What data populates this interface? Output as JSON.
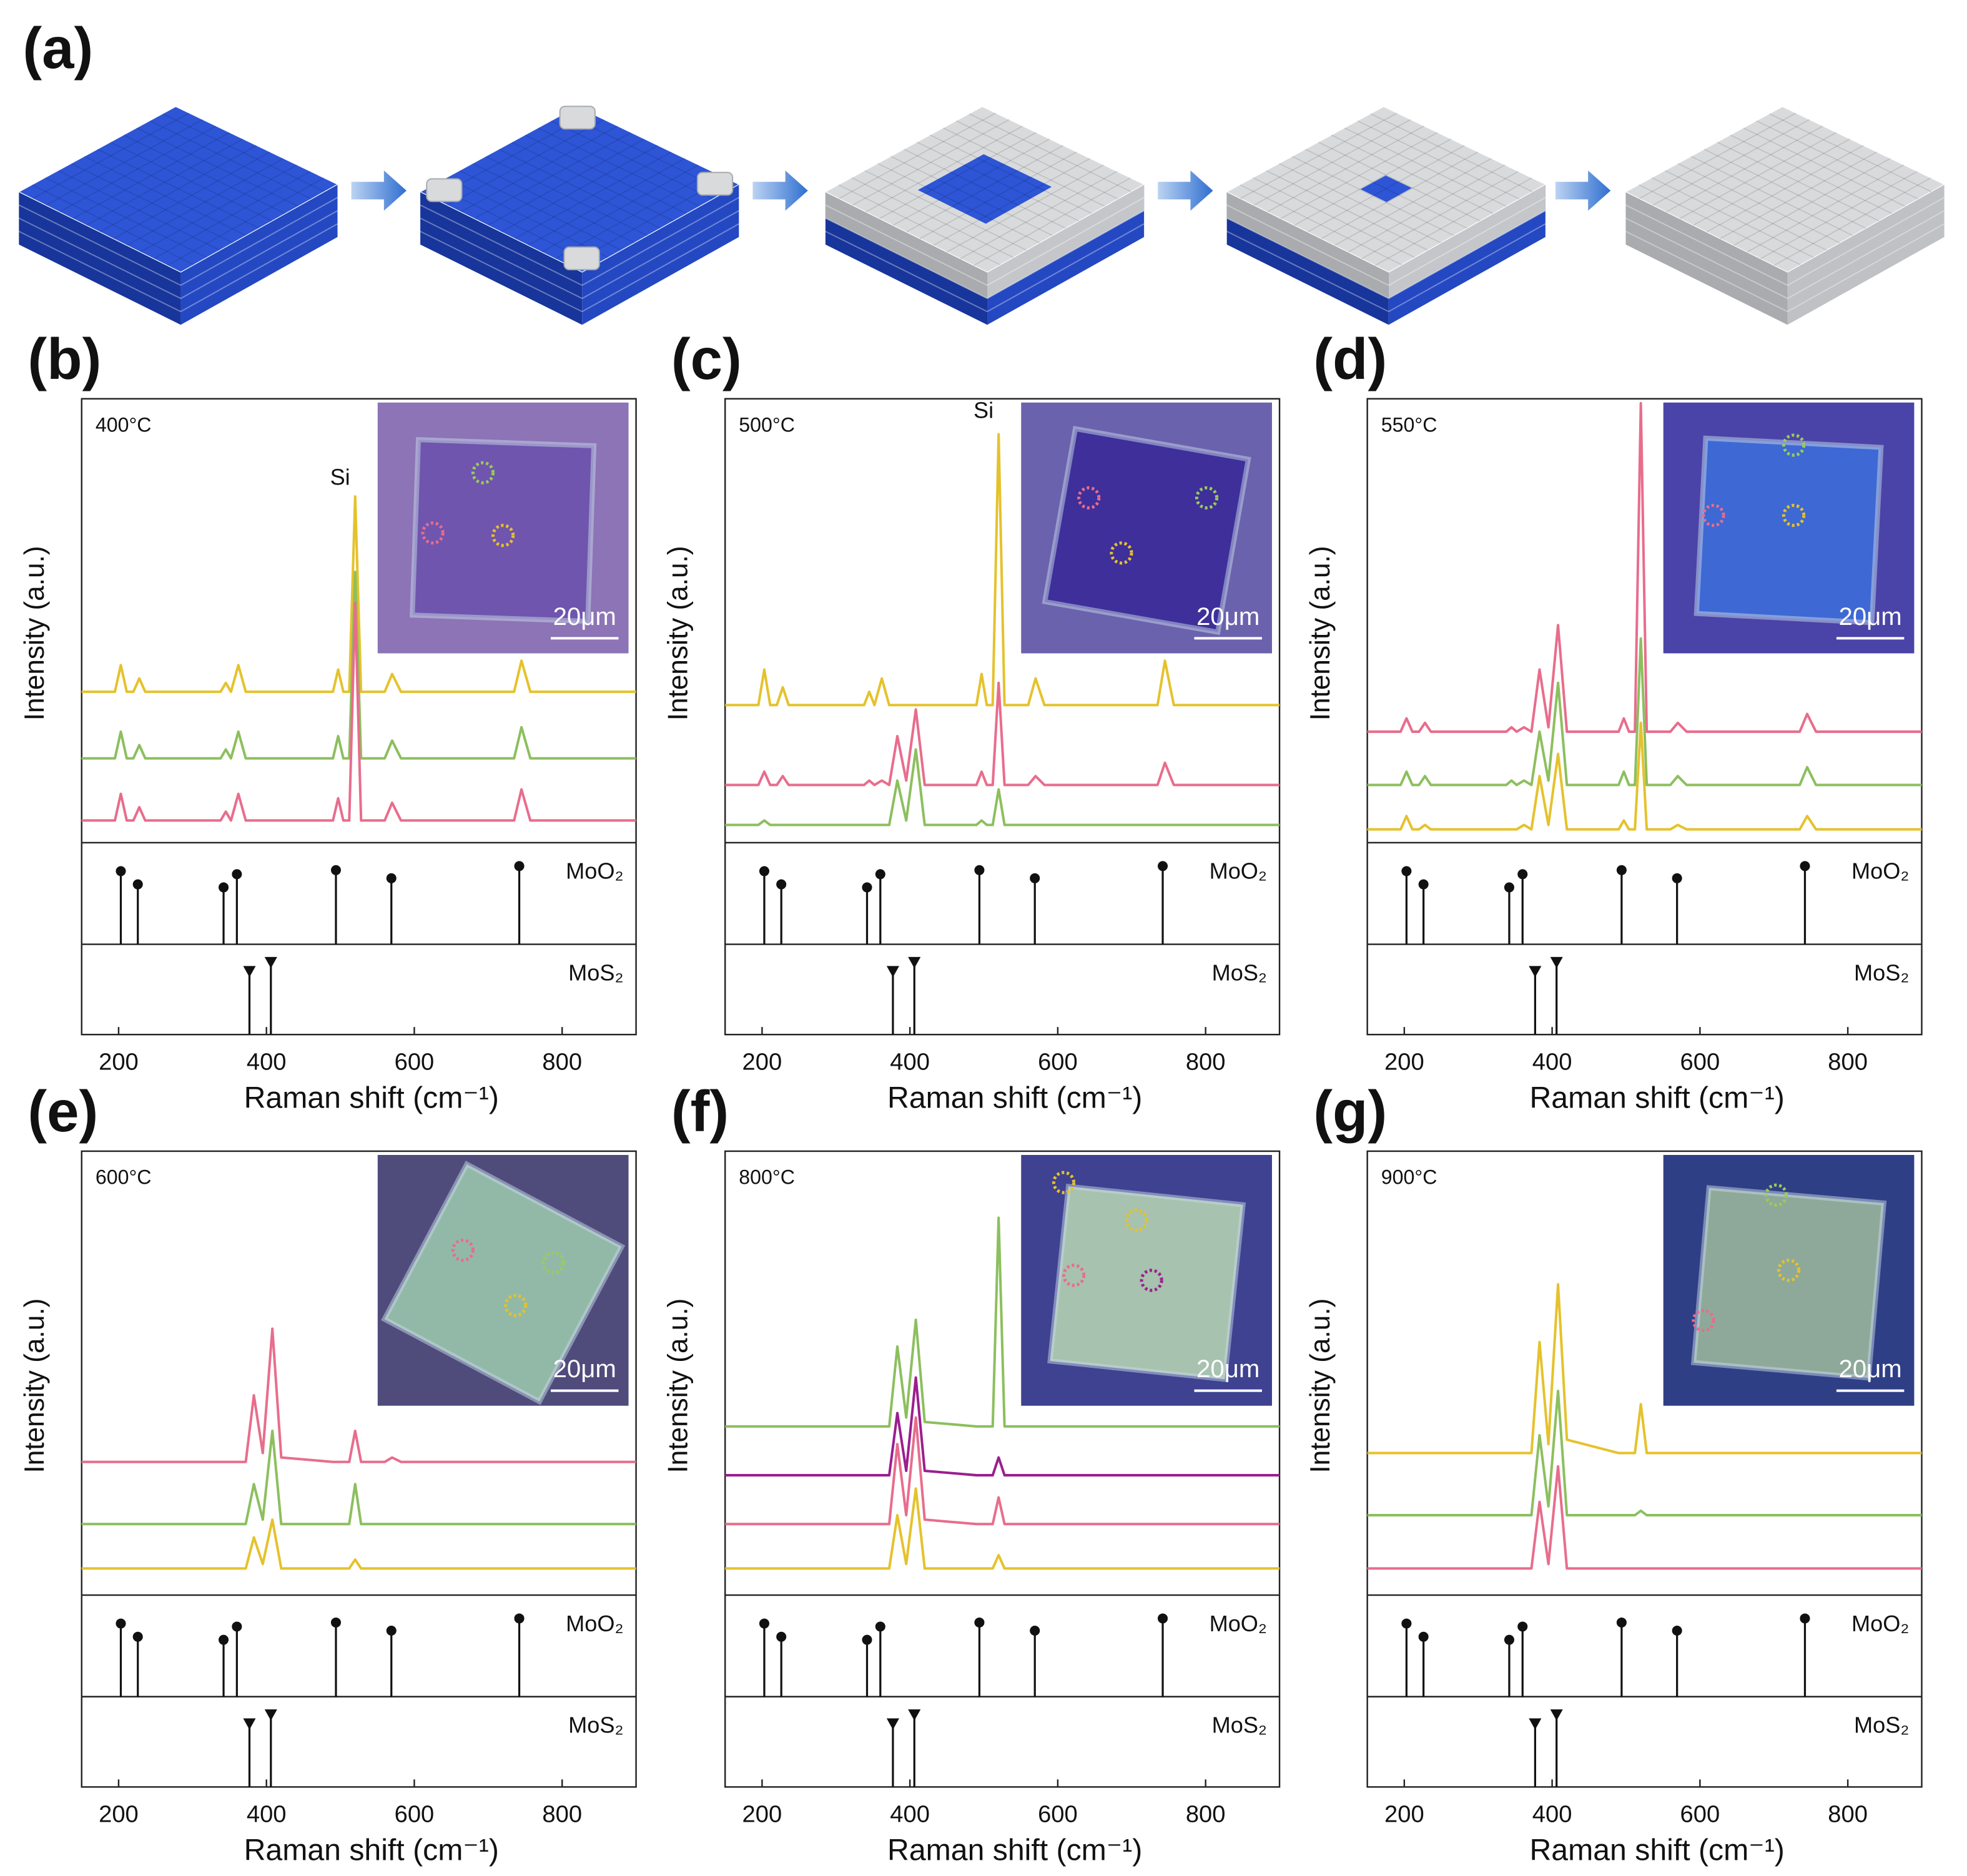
{
  "panel_a": {
    "label": "(a)"
  },
  "chart_data": [
    {
      "type": "line",
      "label": "(b)",
      "annotation": "400°C",
      "xlabel": "Raman shift (cm⁻¹)",
      "ylabel": "Intensity (a.u.)",
      "xlim": [
        150,
        900
      ],
      "xticks": [
        200,
        400,
        600,
        800
      ],
      "ylim": [
        0,
        100
      ],
      "x": [
        150,
        195,
        203,
        211,
        220,
        228,
        236,
        338,
        345,
        352,
        362,
        372,
        383,
        395,
        408,
        420,
        490,
        497,
        504,
        512,
        520,
        528,
        560,
        570,
        582,
        735,
        745,
        757,
        900
      ],
      "series": [
        {
          "color": "#e5c22c",
          "values": [
            34,
            34,
            40,
            34,
            34,
            37,
            34,
            34,
            36,
            34,
            40,
            34,
            34,
            34,
            34,
            34,
            34,
            39,
            34,
            34,
            78,
            34,
            34,
            38,
            34,
            34,
            41,
            34,
            34
          ]
        },
        {
          "color": "#8cbf5e",
          "values": [
            19,
            19,
            25,
            19,
            19,
            22,
            19,
            19,
            21,
            19,
            25,
            19,
            19,
            19,
            19,
            19,
            19,
            24,
            19,
            19,
            61,
            19,
            19,
            23,
            19,
            19,
            26,
            19,
            19
          ]
        },
        {
          "color": "#e86d8c",
          "values": [
            5,
            5,
            11,
            5,
            5,
            8,
            5,
            5,
            7,
            5,
            11,
            5,
            5,
            5,
            5,
            5,
            5,
            10,
            5,
            5,
            54,
            5,
            5,
            9,
            5,
            5,
            12,
            5,
            5
          ]
        }
      ],
      "peak_labels": [
        {
          "text": "Si",
          "x": 520,
          "y": 82
        }
      ],
      "reference_ylim": [
        0,
        100
      ],
      "reference": [
        {
          "name": "MoO₂",
          "marker": "circle",
          "x": [
            203,
            226,
            342,
            360,
            494,
            569,
            742
          ],
          "values": [
            72,
            59,
            56,
            69,
            73,
            65,
            77
          ]
        },
        {
          "name": "MoS₂",
          "marker": "triangle",
          "x": [
            377,
            406
          ],
          "values": [
            69,
            79
          ]
        }
      ],
      "inset": {
        "scale_bar": "20μm"
      }
    },
    {
      "type": "line",
      "label": "(c)",
      "annotation": "500°C",
      "xlabel": "Raman shift (cm⁻¹)",
      "ylabel": "Intensity (a.u.)",
      "xlim": [
        150,
        900
      ],
      "xticks": [
        200,
        400,
        600,
        800
      ],
      "ylim": [
        0,
        100
      ],
      "x": [
        150,
        195,
        203,
        211,
        220,
        228,
        236,
        338,
        345,
        352,
        362,
        372,
        383,
        395,
        408,
        420,
        490,
        497,
        504,
        512,
        520,
        528,
        560,
        570,
        582,
        735,
        745,
        757,
        900
      ],
      "series": [
        {
          "color": "#e5c22c",
          "values": [
            31,
            31,
            39,
            31,
            31,
            35,
            31,
            31,
            34,
            31,
            37,
            31,
            31,
            31,
            31,
            31,
            31,
            38,
            31,
            31,
            92,
            31,
            31,
            37,
            31,
            31,
            41,
            31,
            31
          ]
        },
        {
          "color": "#e86d8c",
          "values": [
            13,
            13,
            16,
            13,
            13,
            15,
            13,
            13,
            14,
            13,
            14,
            13,
            24,
            14,
            30,
            13,
            13,
            16,
            13,
            13,
            36,
            13,
            13,
            15,
            13,
            13,
            18,
            13,
            13
          ]
        },
        {
          "color": "#8cbf5e",
          "values": [
            4,
            4,
            5,
            4,
            4,
            4,
            4,
            4,
            4,
            4,
            4,
            4,
            14,
            5,
            21,
            4,
            4,
            5,
            4,
            4,
            12,
            4,
            4,
            4,
            4,
            4,
            4,
            4,
            4
          ]
        }
      ],
      "peak_labels": [
        {
          "text": "Si",
          "x": 520,
          "y": 97
        }
      ],
      "reference_ylim": [
        0,
        100
      ],
      "reference": [
        {
          "name": "MoO₂",
          "marker": "circle",
          "x": [
            203,
            226,
            342,
            360,
            494,
            569,
            742
          ],
          "values": [
            72,
            59,
            56,
            69,
            73,
            65,
            77
          ]
        },
        {
          "name": "MoS₂",
          "marker": "triangle",
          "x": [
            377,
            406
          ],
          "values": [
            69,
            79
          ]
        }
      ],
      "inset": {
        "scale_bar": "20μm"
      }
    },
    {
      "type": "line",
      "label": "(d)",
      "annotation": "550°C",
      "xlabel": "Raman shift (cm⁻¹)",
      "ylabel": "Intensity (a.u.)",
      "xlim": [
        150,
        900
      ],
      "xticks": [
        200,
        400,
        600,
        800
      ],
      "ylim": [
        0,
        100
      ],
      "x": [
        150,
        195,
        203,
        211,
        220,
        228,
        236,
        338,
        345,
        352,
        362,
        372,
        383,
        395,
        408,
        420,
        490,
        497,
        504,
        512,
        520,
        528,
        560,
        570,
        582,
        735,
        745,
        757,
        900
      ],
      "series": [
        {
          "color": "#e86d8c",
          "values": [
            25,
            25,
            28,
            25,
            25,
            27,
            25,
            25,
            26,
            25,
            26,
            25,
            39,
            26,
            49,
            25,
            25,
            28,
            25,
            25,
            99,
            25,
            25,
            27,
            25,
            25,
            29,
            25,
            25
          ]
        },
        {
          "color": "#8cbf5e",
          "values": [
            13,
            13,
            16,
            13,
            13,
            15,
            13,
            13,
            14,
            13,
            14,
            13,
            25,
            14,
            36,
            13,
            13,
            16,
            13,
            13,
            46,
            13,
            13,
            15,
            13,
            13,
            17,
            13,
            13
          ]
        },
        {
          "color": "#e5c22c",
          "values": [
            3,
            3,
            6,
            3,
            3,
            4,
            3,
            3,
            3,
            3,
            4,
            3,
            15,
            4,
            20,
            3,
            3,
            5,
            3,
            3,
            27,
            3,
            3,
            4,
            3,
            3,
            6,
            3,
            3
          ]
        }
      ],
      "reference_ylim": [
        0,
        100
      ],
      "reference": [
        {
          "name": "MoO₂",
          "marker": "circle",
          "x": [
            203,
            226,
            342,
            360,
            494,
            569,
            742
          ],
          "values": [
            72,
            59,
            56,
            69,
            73,
            65,
            77
          ]
        },
        {
          "name": "MoS₂",
          "marker": "triangle",
          "x": [
            377,
            406
          ],
          "values": [
            69,
            79
          ]
        }
      ],
      "inset": {
        "scale_bar": "20μm"
      }
    },
    {
      "type": "line",
      "label": "(e)",
      "annotation": "600°C",
      "xlabel": "Raman shift (cm⁻¹)",
      "ylabel": "Intensity (a.u.)",
      "xlim": [
        150,
        900
      ],
      "xticks": [
        200,
        400,
        600,
        800
      ],
      "ylim": [
        0,
        100
      ],
      "x": [
        150,
        195,
        203,
        211,
        220,
        228,
        236,
        338,
        345,
        352,
        362,
        372,
        383,
        395,
        408,
        420,
        490,
        497,
        504,
        512,
        520,
        528,
        560,
        570,
        582,
        735,
        745,
        757,
        900
      ],
      "series": [
        {
          "color": "#e86d8c",
          "values": [
            30,
            30,
            30,
            30,
            30,
            30,
            30,
            30,
            30,
            30,
            30,
            30,
            45,
            32,
            60,
            31,
            30,
            30,
            30,
            30,
            37,
            30,
            30,
            31,
            30,
            30,
            30,
            30,
            30
          ]
        },
        {
          "color": "#8cbf5e",
          "values": [
            16,
            16,
            16,
            16,
            16,
            16,
            16,
            16,
            16,
            16,
            16,
            16,
            25,
            17,
            37,
            16,
            16,
            16,
            16,
            16,
            25,
            16,
            16,
            16,
            16,
            16,
            16,
            16,
            16
          ]
        },
        {
          "color": "#e5c22c",
          "values": [
            6,
            6,
            6,
            6,
            6,
            6,
            6,
            6,
            6,
            6,
            6,
            6,
            13,
            7,
            17,
            6,
            6,
            6,
            6,
            6,
            8,
            6,
            6,
            6,
            6,
            6,
            6,
            6,
            6
          ]
        }
      ],
      "reference_ylim": [
        0,
        100
      ],
      "reference": [
        {
          "name": "MoO₂",
          "marker": "circle",
          "x": [
            203,
            226,
            342,
            360,
            494,
            569,
            742
          ],
          "values": [
            72,
            59,
            56,
            69,
            73,
            65,
            77
          ]
        },
        {
          "name": "MoS₂",
          "marker": "triangle",
          "x": [
            377,
            406
          ],
          "values": [
            69,
            79
          ]
        }
      ],
      "inset": {
        "scale_bar": "20μm"
      }
    },
    {
      "type": "line",
      "label": "(f)",
      "annotation": "800°C",
      "xlabel": "Raman shift (cm⁻¹)",
      "ylabel": "Intensity (a.u.)",
      "xlim": [
        150,
        900
      ],
      "xticks": [
        200,
        400,
        600,
        800
      ],
      "ylim": [
        0,
        100
      ],
      "x": [
        150,
        195,
        203,
        211,
        220,
        228,
        236,
        338,
        345,
        352,
        362,
        372,
        383,
        395,
        408,
        420,
        490,
        497,
        504,
        512,
        520,
        528,
        560,
        570,
        582,
        735,
        745,
        757,
        900
      ],
      "series": [
        {
          "color": "#8cbf5e",
          "values": [
            38,
            38,
            38,
            38,
            38,
            38,
            38,
            38,
            38,
            38,
            38,
            38,
            56,
            40,
            62,
            39,
            38,
            38,
            38,
            38,
            85,
            38,
            38,
            38,
            38,
            38,
            38,
            38,
            38
          ]
        },
        {
          "color": "#9b1f8f",
          "values": [
            27,
            27,
            27,
            27,
            27,
            27,
            27,
            27,
            27,
            27,
            27,
            27,
            41,
            28,
            49,
            28,
            27,
            27,
            27,
            27,
            31,
            27,
            27,
            27,
            27,
            27,
            27,
            27,
            27
          ]
        },
        {
          "color": "#e86d8c",
          "values": [
            16,
            16,
            16,
            16,
            16,
            16,
            16,
            16,
            16,
            16,
            16,
            16,
            34,
            18,
            40,
            17,
            16,
            16,
            16,
            16,
            22,
            16,
            16,
            16,
            16,
            16,
            16,
            16,
            16
          ]
        },
        {
          "color": "#e5c22c",
          "values": [
            6,
            6,
            6,
            6,
            6,
            6,
            6,
            6,
            6,
            6,
            6,
            6,
            18,
            7,
            24,
            6,
            6,
            6,
            6,
            6,
            9,
            6,
            6,
            6,
            6,
            6,
            6,
            6,
            6
          ]
        }
      ],
      "reference_ylim": [
        0,
        100
      ],
      "reference": [
        {
          "name": "MoO₂",
          "marker": "circle",
          "x": [
            203,
            226,
            342,
            360,
            494,
            569,
            742
          ],
          "values": [
            72,
            59,
            56,
            69,
            73,
            65,
            77
          ]
        },
        {
          "name": "MoS₂",
          "marker": "triangle",
          "x": [
            377,
            406
          ],
          "values": [
            69,
            79
          ]
        }
      ],
      "inset": {
        "scale_bar": "20μm"
      }
    },
    {
      "type": "line",
      "label": "(g)",
      "annotation": "900°C",
      "xlabel": "Raman shift (cm⁻¹)",
      "ylabel": "Intensity (a.u.)",
      "xlim": [
        150,
        900
      ],
      "xticks": [
        200,
        400,
        600,
        800
      ],
      "ylim": [
        0,
        100
      ],
      "x": [
        150,
        195,
        203,
        211,
        220,
        228,
        236,
        338,
        345,
        352,
        362,
        372,
        383,
        395,
        408,
        420,
        490,
        497,
        504,
        512,
        520,
        528,
        560,
        570,
        582,
        735,
        745,
        757,
        900
      ],
      "series": [
        {
          "color": "#e5c22c",
          "values": [
            32,
            32,
            32,
            32,
            32,
            32,
            32,
            32,
            32,
            32,
            32,
            32,
            57,
            34,
            70,
            35,
            32,
            32,
            32,
            32,
            43,
            32,
            32,
            32,
            32,
            32,
            32,
            32,
            32
          ]
        },
        {
          "color": "#8cbf5e",
          "values": [
            18,
            18,
            18,
            18,
            18,
            18,
            18,
            18,
            18,
            18,
            18,
            18,
            36,
            20,
            46,
            18,
            18,
            18,
            18,
            18,
            19,
            18,
            18,
            18,
            18,
            18,
            18,
            18,
            18
          ]
        },
        {
          "color": "#e86d8c",
          "values": [
            6,
            6,
            6,
            6,
            6,
            6,
            6,
            6,
            6,
            6,
            6,
            6,
            21,
            7,
            29,
            6,
            6,
            6,
            6,
            6,
            6,
            6,
            6,
            6,
            6,
            6,
            6,
            6,
            6
          ]
        }
      ],
      "reference_ylim": [
        0,
        100
      ],
      "reference": [
        {
          "name": "MoO₂",
          "marker": "circle",
          "x": [
            203,
            226,
            342,
            360,
            494,
            569,
            742
          ],
          "values": [
            72,
            59,
            56,
            69,
            73,
            65,
            77
          ]
        },
        {
          "name": "MoS₂",
          "marker": "triangle",
          "x": [
            377,
            406
          ],
          "values": [
            69,
            79
          ]
        }
      ],
      "inset": {
        "scale_bar": "20μm"
      }
    }
  ]
}
